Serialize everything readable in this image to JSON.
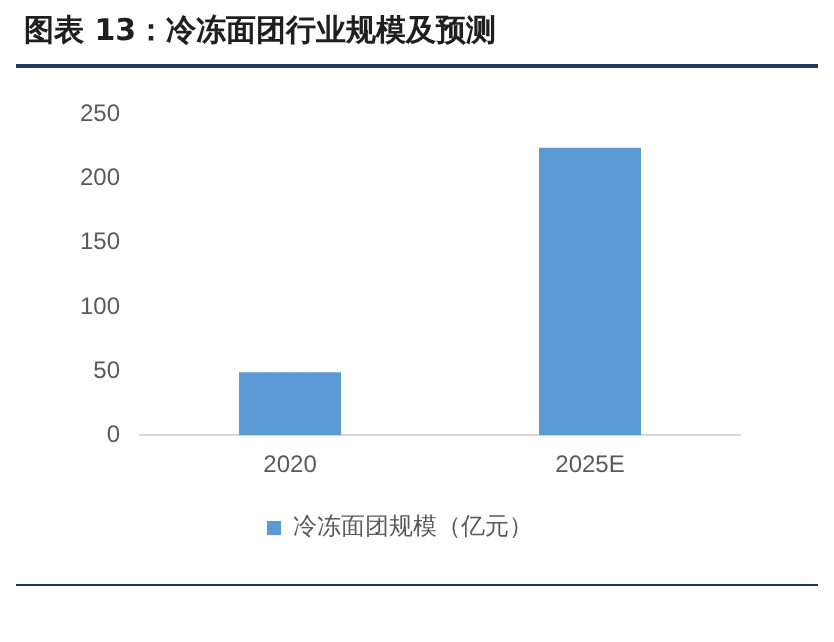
{
  "chart_data": {
    "type": "bar",
    "title": "图表 13：冷冻面团行业规模及预测",
    "categories": [
      "2020",
      "2025E"
    ],
    "series": [
      {
        "name": "冷冻面团规模（亿元）",
        "color": "#5b9bd5",
        "values": [
          49,
          224
        ]
      }
    ],
    "ylim": [
      0,
      250
    ],
    "yticks": [
      0,
      50,
      100,
      150,
      200,
      250
    ],
    "grid": false,
    "legend": "bottom"
  }
}
